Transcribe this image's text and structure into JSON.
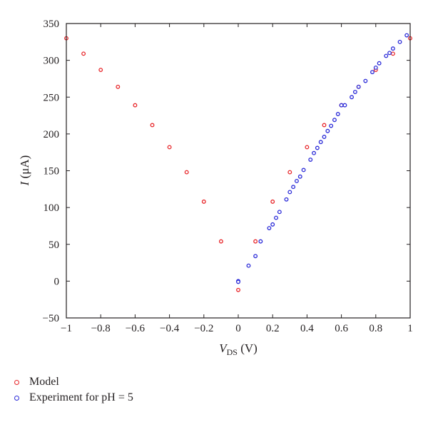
{
  "chart_data": {
    "type": "scatter",
    "title": "",
    "xlabel": {
      "main": "V",
      "sub": "DS",
      "unit": " (V)"
    },
    "ylabel": {
      "main": "I",
      "unit": " (μA)"
    },
    "xlim": [
      -1,
      1
    ],
    "ylim": [
      -50,
      350
    ],
    "xticks": [
      -1,
      -0.8,
      -0.6,
      -0.4,
      -0.2,
      0,
      0.2,
      0.4,
      0.6,
      0.8,
      1
    ],
    "xtick_labels": [
      "−1",
      "−0.8",
      "−0.6",
      "−0.4",
      "−0.2",
      "0",
      "0.2",
      "0.4",
      "0.6",
      "0.8",
      "1"
    ],
    "yticks": [
      -50,
      0,
      50,
      100,
      150,
      200,
      250,
      300,
      350
    ],
    "ytick_labels": [
      "−50",
      "0",
      "50",
      "100",
      "150",
      "200",
      "250",
      "300",
      "350"
    ],
    "grid": false,
    "legend_position": "bottom-left outside",
    "series": [
      {
        "name": "Model",
        "color": "#e8262a",
        "x": [
          -1,
          -0.9,
          -0.8,
          -0.7,
          -0.6,
          -0.5,
          -0.4,
          -0.3,
          -0.2,
          -0.1,
          0,
          0.1,
          0.2,
          0.3,
          0.4,
          0.5,
          0.6,
          0.7,
          0.8,
          0.9,
          1
        ],
        "y": [
          330,
          309,
          287,
          264,
          239,
          212,
          182,
          148,
          108,
          54,
          -12,
          54,
          108,
          148,
          182,
          212,
          239,
          264,
          287,
          309,
          330
        ]
      },
      {
        "name": "Experiment for pH = 5",
        "color": "#2b2bd8",
        "x": [
          0,
          0,
          0.06,
          0.1,
          0.13,
          0.18,
          0.2,
          0.22,
          0.24,
          0.28,
          0.3,
          0.32,
          0.34,
          0.36,
          0.38,
          0.42,
          0.44,
          0.46,
          0.48,
          0.5,
          0.52,
          0.54,
          0.56,
          0.58,
          0.6,
          0.62,
          0.66,
          0.68,
          0.7,
          0.74,
          0.78,
          0.8,
          0.82,
          0.86,
          0.88,
          0.9,
          0.94,
          0.98
        ],
        "y": [
          0,
          -1,
          21,
          34,
          54,
          72,
          77,
          86,
          94,
          111,
          121,
          128,
          136,
          142,
          151,
          165,
          174,
          181,
          189,
          196,
          204,
          211,
          219,
          227,
          239,
          239,
          250,
          257,
          264,
          272,
          284,
          290,
          296,
          306,
          310,
          316,
          325,
          334
        ]
      }
    ]
  }
}
